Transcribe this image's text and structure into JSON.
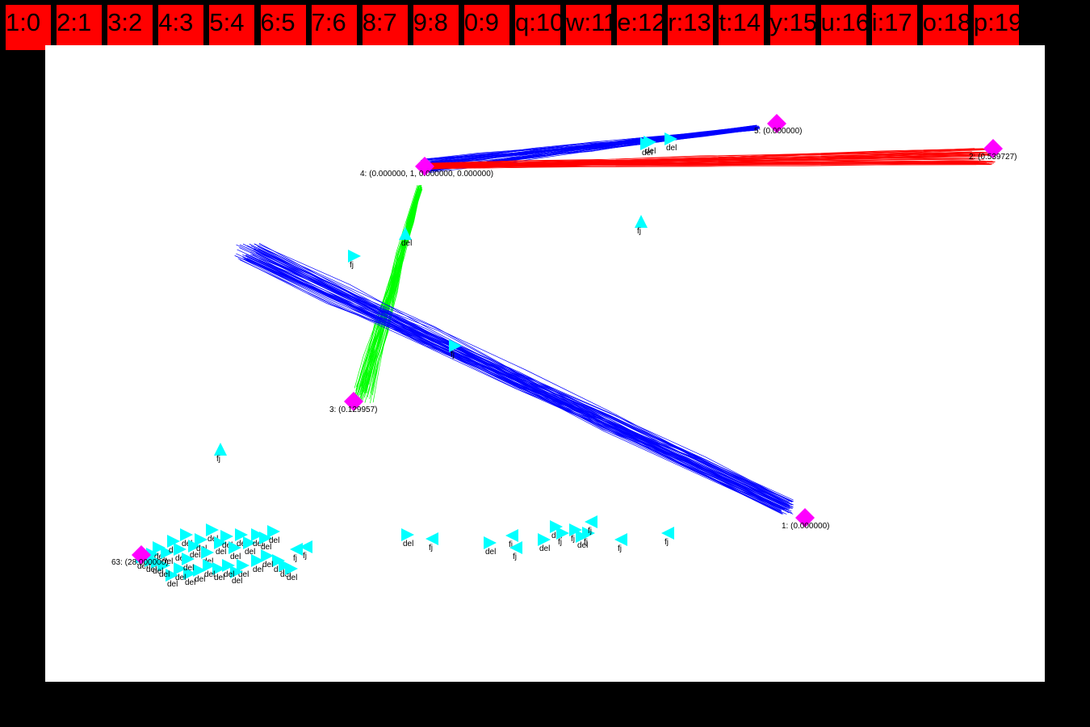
{
  "tabs": [
    "1:0",
    "2:1",
    "3:2",
    "4:3",
    "5:4",
    "6:5",
    "7:6",
    "8:7",
    "9:8",
    "0:9",
    "q:10",
    "w:11",
    "e:12",
    "r:13",
    "t:14",
    "y:15",
    "u:16",
    "i:17",
    "o:18",
    "p:19"
  ],
  "colors": {
    "tab_bg": "#ff0000",
    "background": "#000000",
    "canvas": "#ffffff",
    "node": "#ff00ff",
    "agent": "#00ffff",
    "path_blue": "#0000ff",
    "path_red": "#ff0000",
    "path_green": "#00ff00"
  },
  "nodes": [
    {
      "id": "5",
      "label": "5: (0.000000)"
    },
    {
      "id": "2",
      "label": "2: (0.539727)"
    },
    {
      "id": "4",
      "label": "4: (0.000000, 1, 0.000000, 0.000000)"
    },
    {
      "id": "3",
      "label": "3: (0.129957)"
    },
    {
      "id": "1",
      "label": "1: (0.000000)"
    },
    {
      "id": "63",
      "label": "63: (28.000000)"
    }
  ],
  "agents": [
    {
      "dir": "right",
      "label": "del"
    },
    {
      "dir": "right",
      "label": "del"
    },
    {
      "dir": "right",
      "label": "del"
    },
    {
      "dir": "up",
      "label": "fj"
    },
    {
      "dir": "up",
      "label": "del"
    },
    {
      "dir": "right",
      "label": "fj"
    },
    {
      "dir": "right",
      "label": "fj"
    },
    {
      "dir": "up",
      "label": "fj"
    },
    {
      "dir": "left",
      "label": "fj"
    },
    {
      "dir": "right",
      "label": "del"
    },
    {
      "dir": "left",
      "label": "fj"
    },
    {
      "dir": "left",
      "label": "fj"
    },
    {
      "dir": "left",
      "label": "fj"
    },
    {
      "dir": "right",
      "label": "del"
    },
    {
      "dir": "right",
      "label": "del"
    },
    {
      "dir": "right",
      "label": "fj"
    },
    {
      "dir": "right",
      "label": "fj"
    },
    {
      "dir": "right",
      "label": "del"
    },
    {
      "dir": "right",
      "label": "fj"
    },
    {
      "dir": "left",
      "label": "fj"
    },
    {
      "dir": "left",
      "label": "fj"
    },
    {
      "dir": "right",
      "label": "del"
    },
    {
      "dir": "left",
      "label": "fj"
    },
    {
      "dir": "right",
      "label": "del"
    },
    {
      "dir": "right",
      "label": "del"
    },
    {
      "dir": "right",
      "label": "del"
    },
    {
      "dir": "right",
      "label": "del"
    },
    {
      "dir": "right",
      "label": "del"
    },
    {
      "dir": "right",
      "label": "del"
    },
    {
      "dir": "right",
      "label": "del"
    },
    {
      "dir": "right",
      "label": "del"
    },
    {
      "dir": "right",
      "label": "del"
    },
    {
      "dir": "right",
      "label": "del"
    },
    {
      "dir": "right",
      "label": "del"
    },
    {
      "dir": "right",
      "label": "del"
    },
    {
      "dir": "right",
      "label": "del"
    },
    {
      "dir": "right",
      "label": "del"
    },
    {
      "dir": "right",
      "label": "del"
    },
    {
      "dir": "right",
      "label": "del"
    },
    {
      "dir": "right",
      "label": "del"
    },
    {
      "dir": "right",
      "label": "del"
    },
    {
      "dir": "right",
      "label": "del"
    },
    {
      "dir": "right",
      "label": "del"
    },
    {
      "dir": "right",
      "label": "del"
    },
    {
      "dir": "right",
      "label": "del"
    },
    {
      "dir": "right",
      "label": "del"
    },
    {
      "dir": "right",
      "label": "del"
    },
    {
      "dir": "right",
      "label": "del"
    },
    {
      "dir": "right",
      "label": "del"
    },
    {
      "dir": "right",
      "label": "del"
    },
    {
      "dir": "right",
      "label": "del"
    },
    {
      "dir": "right",
      "label": "del"
    },
    {
      "dir": "right",
      "label": "del"
    },
    {
      "dir": "right",
      "label": "del"
    },
    {
      "dir": "right",
      "label": "del"
    },
    {
      "dir": "right",
      "label": "del"
    },
    {
      "dir": "right",
      "label": "del"
    },
    {
      "dir": "right",
      "label": "del"
    },
    {
      "dir": "right",
      "label": "del"
    },
    {
      "dir": "right",
      "label": "del"
    },
    {
      "dir": "left",
      "label": "fj"
    }
  ]
}
